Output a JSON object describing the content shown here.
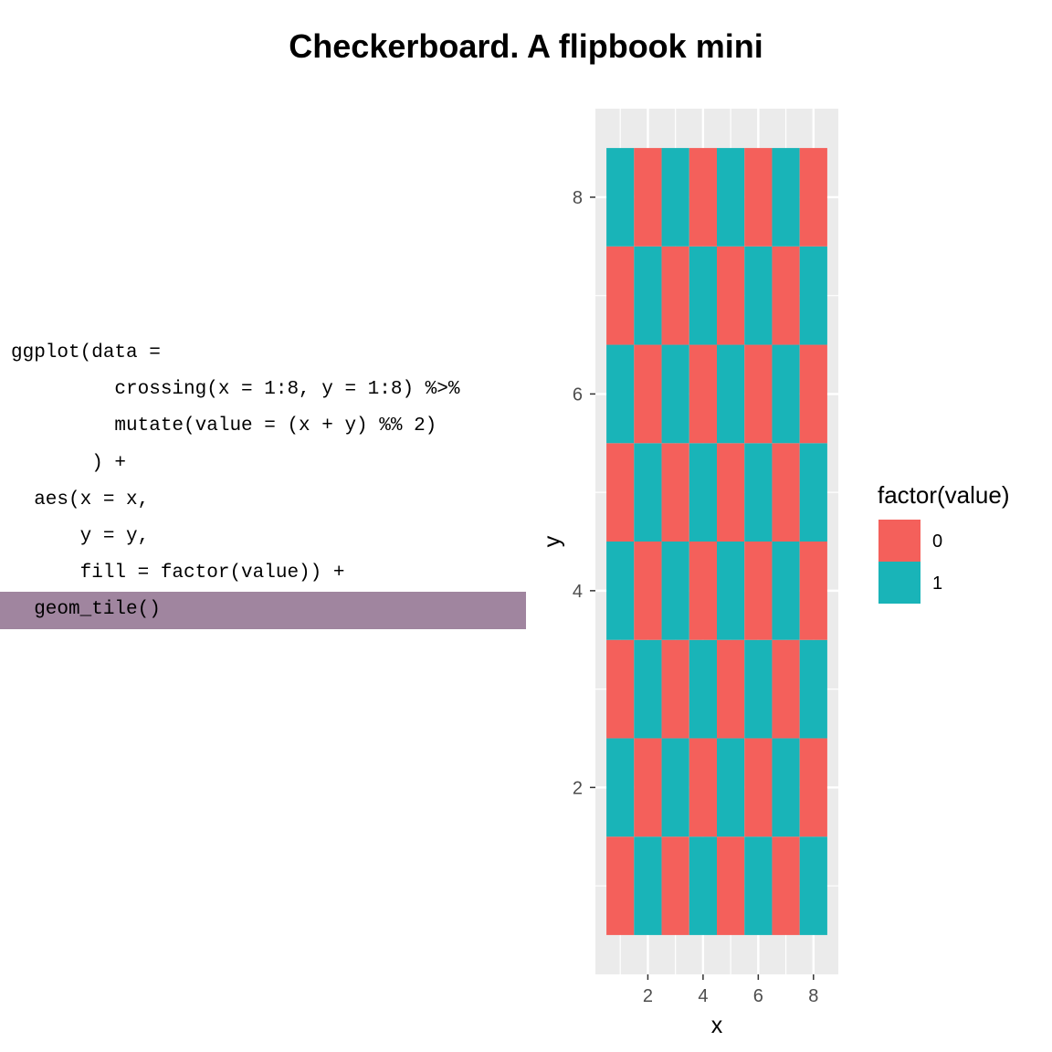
{
  "title": "Checkerboard. A flipbook mini",
  "code": {
    "lines": [
      "ggplot(data =",
      "         crossing(x = 1:8, y = 1:8) %>%",
      "         mutate(value = (x + y) %% 2)",
      "       ) +",
      "  aes(x = x,",
      "      y = y,",
      "      fill = factor(value)) +",
      "  geom_tile()"
    ],
    "highlighted_line": 7
  },
  "chart_data": {
    "type": "heatmap",
    "x": [
      1,
      2,
      3,
      4,
      5,
      6,
      7,
      8
    ],
    "y": [
      1,
      2,
      3,
      4,
      5,
      6,
      7,
      8
    ],
    "value_rule": "(x + y) %% 2",
    "xlabel": "x",
    "ylabel": "y",
    "xlim": [
      0.1,
      8.9
    ],
    "ylim": [
      0.1,
      8.9
    ],
    "xticks": [
      2,
      4,
      6,
      8
    ],
    "yticks": [
      2,
      4,
      6,
      8
    ],
    "legend": {
      "title": "factor(value)",
      "position": "right",
      "entries": [
        {
          "label": "0",
          "color": "#F8766D"
        },
        {
          "label": "1",
          "color": "#00BFC4"
        }
      ]
    },
    "panel_background": "#EBEBEB",
    "grid": true
  },
  "colors": {
    "zero": "#F4605B",
    "one": "#19B4B8",
    "highlight": "#A0859F"
  }
}
